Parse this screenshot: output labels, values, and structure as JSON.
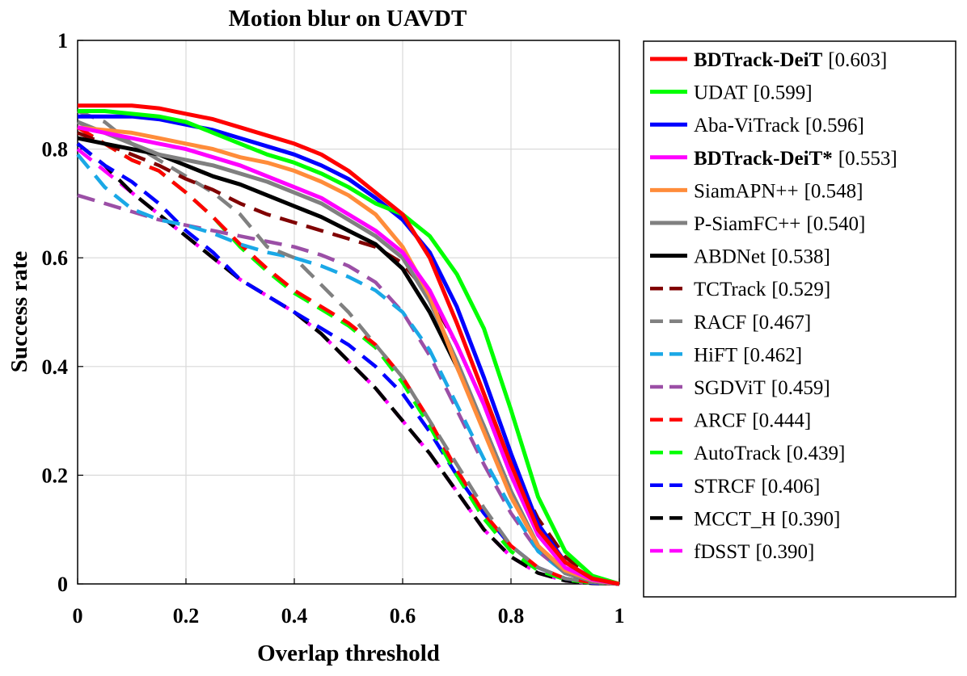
{
  "chart_data": {
    "type": "line",
    "title": "Motion blur on UAVDT",
    "xlabel": "Overlap threshold",
    "ylabel": "Success rate",
    "xlim": [
      0,
      1
    ],
    "ylim": [
      0,
      1
    ],
    "grid": true,
    "legend_position": "outside-right",
    "x_ticks": [
      "0",
      "0.2",
      "0.4",
      "0.6",
      "0.8",
      "1"
    ],
    "y_ticks": [
      "0",
      "0.2",
      "0.4",
      "0.6",
      "0.8",
      "1"
    ],
    "x": [
      0,
      0.05,
      0.1,
      0.15,
      0.2,
      0.25,
      0.3,
      0.35,
      0.4,
      0.45,
      0.5,
      0.55,
      0.6,
      0.65,
      0.7,
      0.75,
      0.8,
      0.85,
      0.9,
      0.95,
      1.0
    ],
    "series": [
      {
        "name": "BDTrack-DeiT",
        "score": "[0.603]",
        "bold": true,
        "color": "#ff0000",
        "style": "solid",
        "values": [
          0.88,
          0.88,
          0.88,
          0.875,
          0.865,
          0.855,
          0.84,
          0.825,
          0.81,
          0.79,
          0.76,
          0.72,
          0.68,
          0.6,
          0.48,
          0.35,
          0.22,
          0.1,
          0.04,
          0.01,
          0.0
        ]
      },
      {
        "name": "UDAT",
        "score": "[0.599]",
        "bold": false,
        "color": "#00ff00",
        "style": "solid",
        "values": [
          0.87,
          0.87,
          0.865,
          0.86,
          0.85,
          0.83,
          0.81,
          0.79,
          0.775,
          0.755,
          0.73,
          0.7,
          0.68,
          0.64,
          0.57,
          0.47,
          0.32,
          0.16,
          0.06,
          0.015,
          0.0
        ]
      },
      {
        "name": "Aba-ViTrack",
        "score": "[0.596]",
        "bold": false,
        "color": "#0000ff",
        "style": "solid",
        "values": [
          0.86,
          0.86,
          0.86,
          0.855,
          0.845,
          0.835,
          0.82,
          0.805,
          0.79,
          0.77,
          0.745,
          0.71,
          0.67,
          0.61,
          0.51,
          0.38,
          0.24,
          0.11,
          0.04,
          0.01,
          0.0
        ]
      },
      {
        "name": "BDTrack-DeiT*",
        "score": "[0.553]",
        "bold": true,
        "color": "#ff00ff",
        "style": "solid",
        "values": [
          0.84,
          0.83,
          0.82,
          0.81,
          0.8,
          0.785,
          0.77,
          0.75,
          0.73,
          0.71,
          0.68,
          0.65,
          0.61,
          0.54,
          0.44,
          0.33,
          0.2,
          0.09,
          0.03,
          0.008,
          0.0
        ]
      },
      {
        "name": "SiamAPN++",
        "score": "[0.548]",
        "bold": false,
        "color": "#ff8c3a",
        "style": "solid",
        "values": [
          0.84,
          0.835,
          0.83,
          0.82,
          0.81,
          0.8,
          0.785,
          0.775,
          0.76,
          0.74,
          0.715,
          0.68,
          0.62,
          0.53,
          0.4,
          0.28,
          0.16,
          0.07,
          0.025,
          0.007,
          0.0
        ]
      },
      {
        "name": "P-SiamFC++",
        "score": "[0.540]",
        "bold": false,
        "color": "#808080",
        "style": "solid",
        "values": [
          0.85,
          0.83,
          0.81,
          0.79,
          0.78,
          0.77,
          0.755,
          0.74,
          0.72,
          0.7,
          0.67,
          0.64,
          0.6,
          0.52,
          0.41,
          0.29,
          0.17,
          0.07,
          0.02,
          0.005,
          0.0
        ]
      },
      {
        "name": "ABDNet",
        "score": "[0.538]",
        "bold": false,
        "color": "#000000",
        "style": "solid",
        "values": [
          0.82,
          0.81,
          0.8,
          0.79,
          0.77,
          0.75,
          0.735,
          0.715,
          0.695,
          0.675,
          0.65,
          0.625,
          0.58,
          0.5,
          0.4,
          0.29,
          0.17,
          0.07,
          0.02,
          0.005,
          0.0
        ]
      },
      {
        "name": "TCTrack",
        "score": "[0.529]",
        "bold": false,
        "color": "#800000",
        "style": "dashed",
        "values": [
          0.83,
          0.81,
          0.79,
          0.77,
          0.745,
          0.725,
          0.7,
          0.68,
          0.665,
          0.65,
          0.635,
          0.62,
          0.59,
          0.53,
          0.44,
          0.33,
          0.22,
          0.12,
          0.05,
          0.012,
          0.0
        ]
      },
      {
        "name": "RACF",
        "score": "[0.467]",
        "bold": false,
        "color": "#808080",
        "style": "dashed",
        "values": [
          0.87,
          0.85,
          0.81,
          0.78,
          0.75,
          0.72,
          0.68,
          0.62,
          0.6,
          0.55,
          0.5,
          0.44,
          0.38,
          0.3,
          0.22,
          0.14,
          0.07,
          0.03,
          0.01,
          0.003,
          0.0
        ]
      },
      {
        "name": "HiFT",
        "score": "[0.462]",
        "bold": false,
        "color": "#1aa8e6",
        "style": "dashed",
        "values": [
          0.79,
          0.73,
          0.69,
          0.67,
          0.66,
          0.645,
          0.625,
          0.61,
          0.6,
          0.585,
          0.565,
          0.54,
          0.5,
          0.43,
          0.33,
          0.23,
          0.14,
          0.06,
          0.02,
          0.005,
          0.0
        ]
      },
      {
        "name": "SGDViT",
        "score": "[0.459]",
        "bold": false,
        "color": "#9b4fa6",
        "style": "dashed",
        "values": [
          0.715,
          0.7,
          0.685,
          0.67,
          0.66,
          0.65,
          0.64,
          0.63,
          0.62,
          0.605,
          0.585,
          0.555,
          0.5,
          0.42,
          0.32,
          0.22,
          0.13,
          0.06,
          0.02,
          0.005,
          0.0
        ]
      },
      {
        "name": "ARCF",
        "score": "[0.444]",
        "bold": false,
        "color": "#ff0000",
        "style": "dashed",
        "values": [
          0.84,
          0.81,
          0.78,
          0.76,
          0.72,
          0.675,
          0.625,
          0.58,
          0.54,
          0.51,
          0.48,
          0.44,
          0.38,
          0.3,
          0.21,
          0.13,
          0.07,
          0.03,
          0.01,
          0.003,
          0.0
        ]
      },
      {
        "name": "AutoTrack",
        "score": "[0.439]",
        "bold": false,
        "color": "#00ff00",
        "style": "dashed",
        "values": [
          0.84,
          0.81,
          0.78,
          0.76,
          0.72,
          0.675,
          0.62,
          0.575,
          0.535,
          0.505,
          0.475,
          0.435,
          0.37,
          0.29,
          0.2,
          0.12,
          0.06,
          0.025,
          0.008,
          0.002,
          0.0
        ]
      },
      {
        "name": "STRCF",
        "score": "[0.406]",
        "bold": false,
        "color": "#0000ff",
        "style": "dashed",
        "values": [
          0.81,
          0.77,
          0.74,
          0.7,
          0.65,
          0.61,
          0.56,
          0.53,
          0.5,
          0.47,
          0.44,
          0.4,
          0.35,
          0.28,
          0.2,
          0.13,
          0.07,
          0.03,
          0.01,
          0.002,
          0.0
        ]
      },
      {
        "name": "MCCT_H",
        "score": "[0.390]",
        "bold": false,
        "color": "#000000",
        "style": "dashed",
        "values": [
          0.81,
          0.77,
          0.72,
          0.68,
          0.64,
          0.6,
          0.56,
          0.53,
          0.5,
          0.46,
          0.41,
          0.36,
          0.3,
          0.24,
          0.17,
          0.1,
          0.05,
          0.02,
          0.006,
          0.001,
          0.0
        ]
      },
      {
        "name": "fDSST",
        "score": "[0.390]",
        "bold": false,
        "color": "#ff00ff",
        "style": "dashed",
        "values": [
          0.8,
          0.76,
          0.72,
          0.68,
          0.64,
          0.6,
          0.56,
          0.53,
          0.5,
          0.46,
          0.41,
          0.36,
          0.3,
          0.24,
          0.17,
          0.1,
          0.05,
          0.02,
          0.006,
          0.001,
          0.0
        ]
      }
    ]
  }
}
